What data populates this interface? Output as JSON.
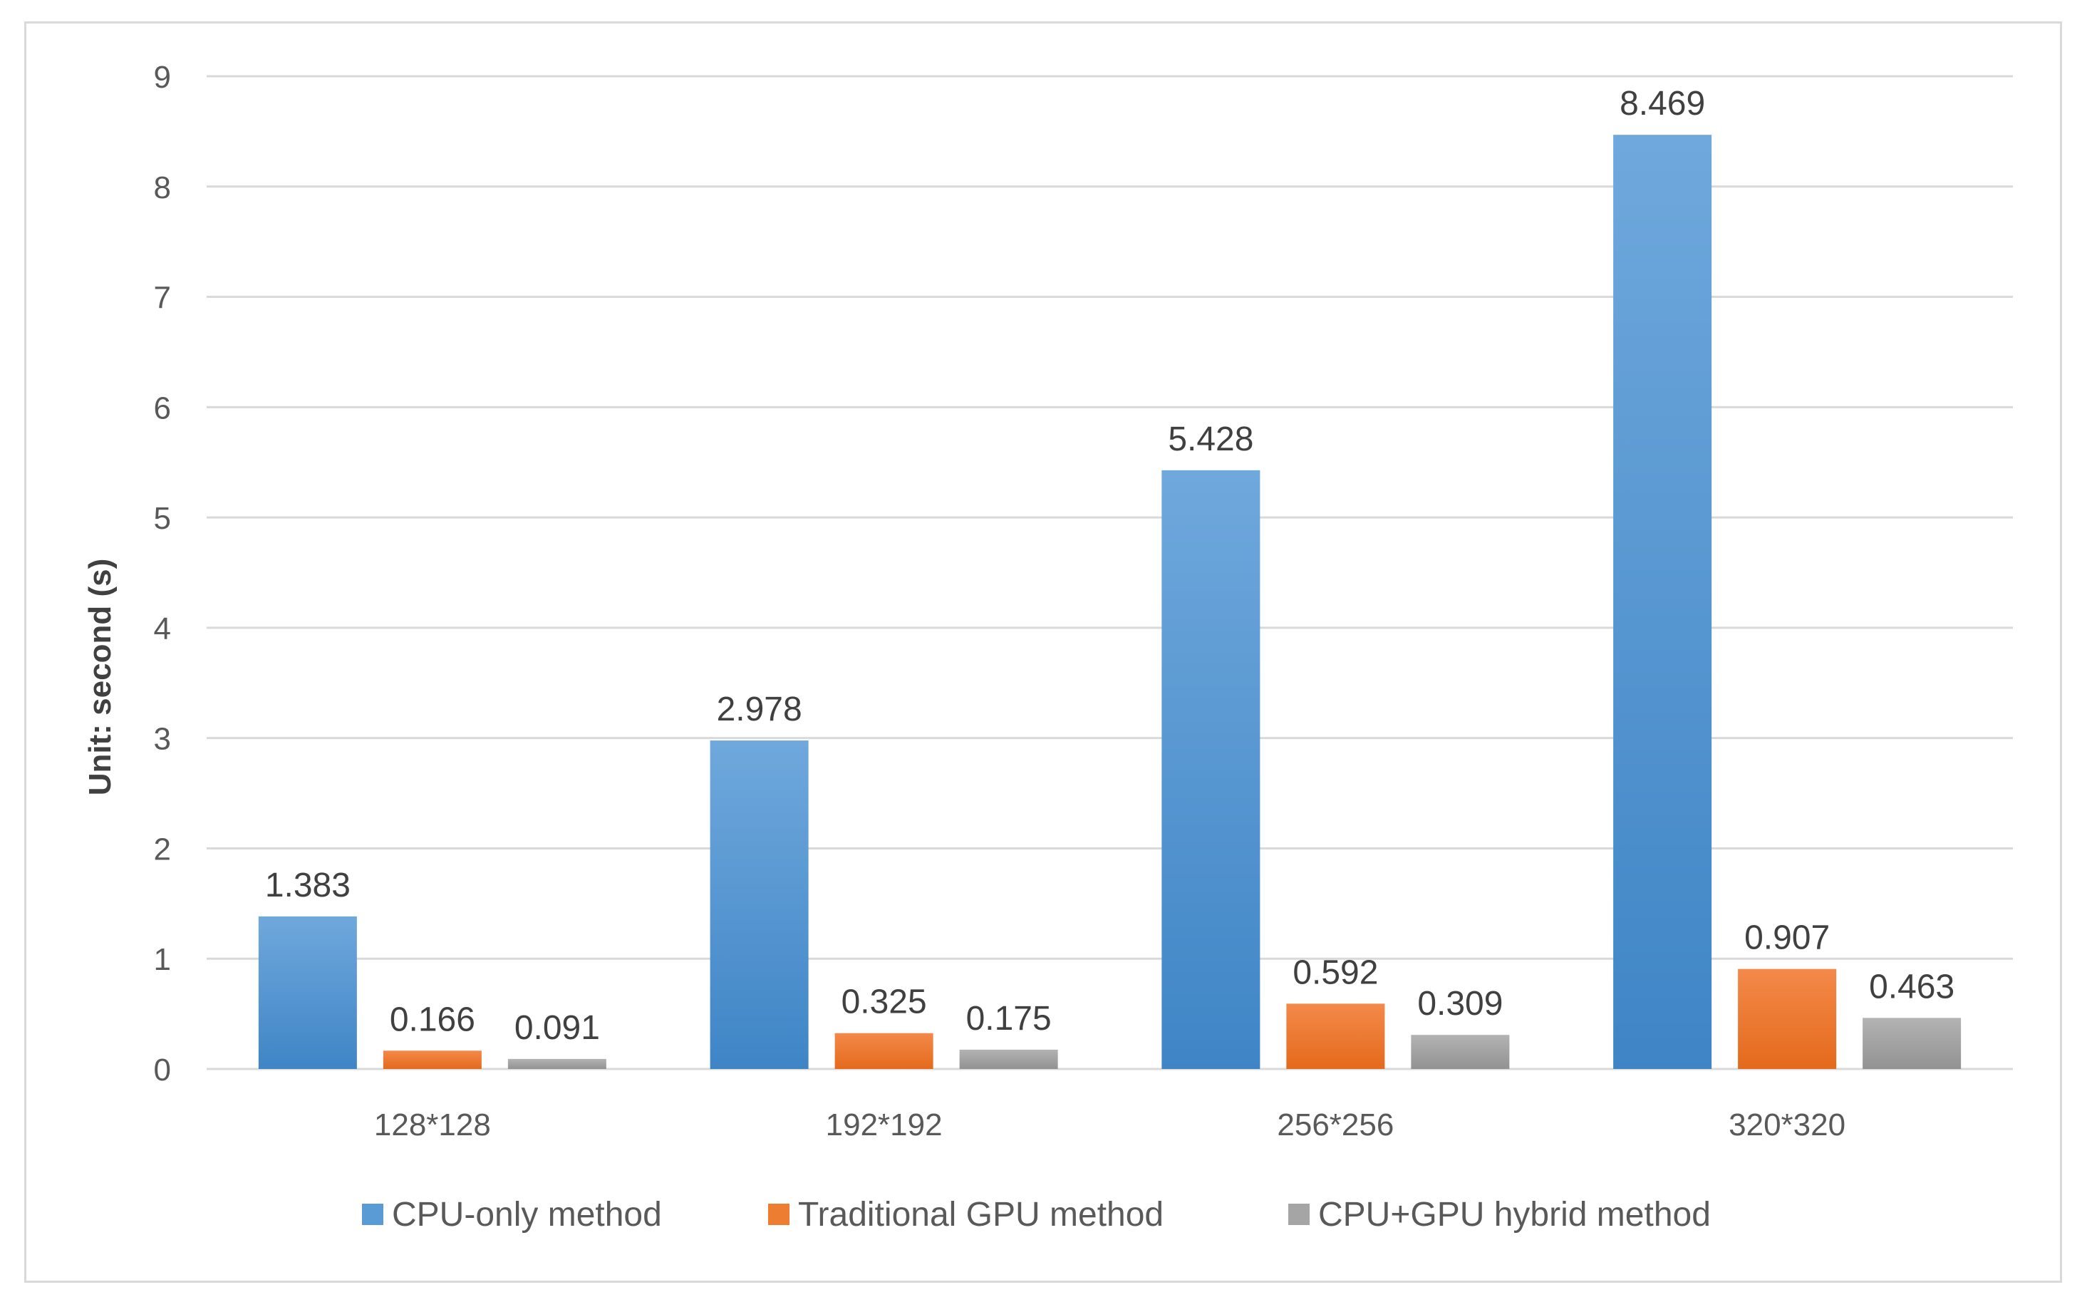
{
  "chart_data": {
    "type": "bar",
    "title": "",
    "xlabel": "",
    "ylabel": "Unit: second (s)",
    "ylim": [
      0,
      9
    ],
    "yticks": [
      0,
      1,
      2,
      3,
      4,
      5,
      6,
      7,
      8,
      9
    ],
    "categories": [
      "128*128",
      "192*192",
      "256*256",
      "320*320"
    ],
    "series": [
      {
        "name": "CPU-only method",
        "color": "#5b9bd5",
        "values": [
          1.383,
          2.978,
          5.428,
          8.469
        ],
        "labels": [
          "1.383",
          "2.978",
          "5.428",
          "8.469"
        ]
      },
      {
        "name": "Traditional GPU method",
        "color": "#ed7d31",
        "values": [
          0.166,
          0.325,
          0.592,
          0.907
        ],
        "labels": [
          "0.166",
          "0.325",
          "0.592",
          "0.907"
        ]
      },
      {
        "name": "CPU+GPU hybrid method",
        "color": "#a5a5a5",
        "values": [
          0.091,
          0.175,
          0.309,
          0.463
        ],
        "labels": [
          "0.091",
          "0.175",
          "0.309",
          "0.463"
        ]
      }
    ],
    "grid": true,
    "legend_position": "bottom"
  }
}
